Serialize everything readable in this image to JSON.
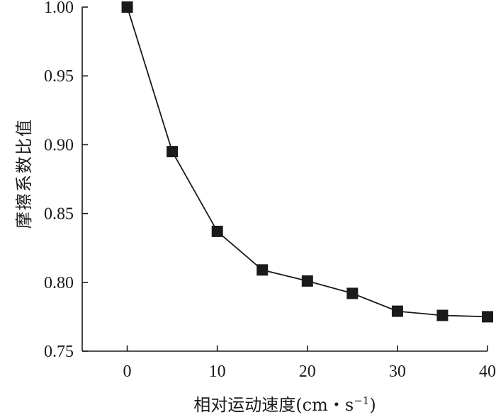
{
  "chart_data": {
    "type": "line",
    "x": [
      0,
      5,
      10,
      15,
      20,
      25,
      30,
      35,
      40
    ],
    "series": [
      {
        "values": [
          1.0,
          0.895,
          0.837,
          0.809,
          0.801,
          0.792,
          0.779,
          0.776,
          0.775
        ]
      }
    ],
    "xlabel": "相对运动速度(cm・s",
    "xlabel_sup": "−1",
    "xlabel_tail": ")",
    "ylabel": "摩擦系数比值",
    "xlim": [
      -5,
      40
    ],
    "ylim": [
      0.75,
      1.0
    ],
    "xticks": [
      0,
      10,
      20,
      30,
      40
    ],
    "yticks": [
      0.75,
      0.8,
      0.85,
      0.9,
      0.95,
      1.0
    ],
    "xtick_labels": [
      "0",
      "10",
      "20",
      "30",
      "40"
    ],
    "ytick_labels": [
      "0.75",
      "0.80",
      "0.85",
      "0.90",
      "0.95",
      "1.00"
    ],
    "grid": false,
    "legend": "none",
    "marker": "square",
    "color": "#1a1a1a"
  }
}
